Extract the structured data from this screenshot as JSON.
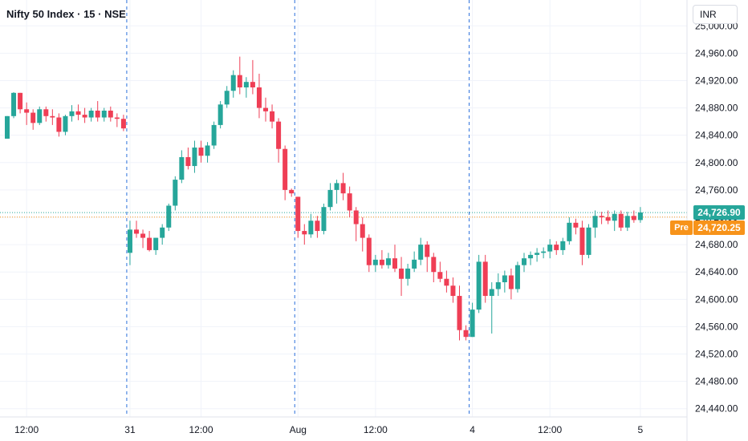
{
  "header": {
    "symbol_line": "Nifty 50 Index · 15 · NSE",
    "currency": "INR"
  },
  "price_labels": {
    "last": "24,726.90",
    "pre_label": "Pre",
    "pre_value": "24,720.25"
  },
  "colors": {
    "up": "#26a69a",
    "down": "#ef3e55",
    "last_line": "#26a69a",
    "pre_line": "#f7931a",
    "grid": "#f0f3fa",
    "separator": "#2a6fdb",
    "axis_text": "#131722"
  },
  "chart_data": {
    "type": "candlestick",
    "title": "Nifty 50 Index · 15 · NSE",
    "ylim": [
      24420,
      25020
    ],
    "y_ticks": [
      25000,
      24960,
      24920,
      24880,
      24840,
      24800,
      24760,
      24720,
      24680,
      24640,
      24600,
      24560,
      24520,
      24480,
      24440
    ],
    "y_tick_labels": [
      "25,000.00",
      "24,960.00",
      "24,920.00",
      "24,880.00",
      "24,840.00",
      "24,800.00",
      "24,760.00",
      "24,720.00",
      "24,680.00",
      "24,640.00",
      "24,600.00",
      "24,560.00",
      "24,520.00",
      "24,480.00",
      "24,440.00"
    ],
    "x_tick_labels": [
      {
        "label": "12:00",
        "bar": 3
      },
      {
        "label": "31",
        "bar": 19
      },
      {
        "label": "12:00",
        "bar": 30
      },
      {
        "label": "Aug",
        "bar": 45
      },
      {
        "label": "12:00",
        "bar": 57
      },
      {
        "label": "4",
        "bar": 72
      },
      {
        "label": "12:00",
        "bar": 84
      },
      {
        "label": "5",
        "bar": 98
      }
    ],
    "session_separators": [
      18.5,
      44.5,
      71.5
    ],
    "last_price": 24726.9,
    "pre_price": 24720.25,
    "candles": [
      [
        24835,
        24868,
        24835,
        24868
      ],
      [
        24868,
        24903,
        24865,
        24902
      ],
      [
        24902,
        24902,
        24872,
        24878
      ],
      [
        24878,
        24888,
        24855,
        24873
      ],
      [
        24873,
        24878,
        24848,
        24858
      ],
      [
        24858,
        24882,
        24855,
        24878
      ],
      [
        24878,
        24882,
        24860,
        24868
      ],
      [
        24868,
        24878,
        24855,
        24866
      ],
      [
        24866,
        24872,
        24838,
        24845
      ],
      [
        24845,
        24870,
        24840,
        24868
      ],
      [
        24868,
        24884,
        24860,
        24875
      ],
      [
        24875,
        24885,
        24862,
        24870
      ],
      [
        24870,
        24880,
        24858,
        24866
      ],
      [
        24866,
        24880,
        24860,
        24876
      ],
      [
        24876,
        24890,
        24860,
        24866
      ],
      [
        24866,
        24880,
        24860,
        24876
      ],
      [
        24876,
        24882,
        24860,
        24866
      ],
      [
        24866,
        24872,
        24852,
        24864
      ],
      [
        24864,
        24870,
        24846,
        24850
      ],
      [
        24668,
        24715,
        24650,
        24702
      ],
      [
        24702,
        24715,
        24690,
        24696
      ],
      [
        24696,
        24702,
        24675,
        24690
      ],
      [
        24690,
        24700,
        24670,
        24672
      ],
      [
        24672,
        24690,
        24665,
        24690
      ],
      [
        24690,
        24710,
        24680,
        24705
      ],
      [
        24705,
        24740,
        24700,
        24737
      ],
      [
        24737,
        24780,
        24730,
        24775
      ],
      [
        24775,
        24818,
        24770,
        24808
      ],
      [
        24808,
        24822,
        24790,
        24795
      ],
      [
        24795,
        24832,
        24785,
        24822
      ],
      [
        24822,
        24832,
        24800,
        24810
      ],
      [
        24810,
        24830,
        24800,
        24825
      ],
      [
        24825,
        24860,
        24820,
        24855
      ],
      [
        24855,
        24890,
        24850,
        24885
      ],
      [
        24885,
        24912,
        24880,
        24905
      ],
      [
        24905,
        24935,
        24895,
        24928
      ],
      [
        24928,
        24955,
        24900,
        24910
      ],
      [
        24910,
        24925,
        24895,
        24918
      ],
      [
        24918,
        24950,
        24900,
        24910
      ],
      [
        24910,
        24930,
        24865,
        24880
      ],
      [
        24880,
        24895,
        24860,
        24875
      ],
      [
        24875,
        24885,
        24850,
        24860
      ],
      [
        24860,
        24865,
        24800,
        24820
      ],
      [
        24820,
        24825,
        24745,
        24760
      ],
      [
        24760,
        24762,
        24750,
        24755
      ],
      [
        24750,
        24750,
        24690,
        24700
      ],
      [
        24700,
        24710,
        24680,
        24695
      ],
      [
        24695,
        24725,
        24690,
        24715
      ],
      [
        24715,
        24722,
        24690,
        24700
      ],
      [
        24700,
        24740,
        24695,
        24735
      ],
      [
        24735,
        24770,
        24730,
        24760
      ],
      [
        24760,
        24775,
        24740,
        24770
      ],
      [
        24770,
        24785,
        24745,
        24755
      ],
      [
        24755,
        24765,
        24720,
        24730
      ],
      [
        24730,
        24735,
        24685,
        24710
      ],
      [
        24710,
        24720,
        24670,
        24690
      ],
      [
        24690,
        24695,
        24640,
        24650
      ],
      [
        24650,
        24665,
        24640,
        24658
      ],
      [
        24658,
        24672,
        24645,
        24650
      ],
      [
        24650,
        24668,
        24645,
        24660
      ],
      [
        24660,
        24680,
        24640,
        24645
      ],
      [
        24645,
        24662,
        24605,
        24630
      ],
      [
        24630,
        24652,
        24620,
        24645
      ],
      [
        24645,
        24670,
        24640,
        24658
      ],
      [
        24658,
        24690,
        24650,
        24680
      ],
      [
        24680,
        24685,
        24640,
        24662
      ],
      [
        24662,
        24668,
        24625,
        24640
      ],
      [
        24640,
        24655,
        24625,
        24630
      ],
      [
        24630,
        24642,
        24610,
        24620
      ],
      [
        24620,
        24632,
        24595,
        24605
      ],
      [
        24605,
        24620,
        24540,
        24555
      ],
      [
        24555,
        24562,
        24540,
        24545
      ],
      [
        24545,
        24595,
        24545,
        24585
      ],
      [
        24585,
        24665,
        24580,
        24655
      ],
      [
        24655,
        24665,
        24595,
        24605
      ],
      [
        24605,
        24625,
        24550,
        24615
      ],
      [
        24615,
        24638,
        24605,
        24625
      ],
      [
        24625,
        24642,
        24610,
        24635
      ],
      [
        24635,
        24645,
        24600,
        24615
      ],
      [
        24615,
        24655,
        24610,
        24650
      ],
      [
        24650,
        24668,
        24640,
        24660
      ],
      [
        24660,
        24670,
        24650,
        24665
      ],
      [
        24665,
        24675,
        24655,
        24668
      ],
      [
        24668,
        24676,
        24660,
        24670
      ],
      [
        24670,
        24688,
        24660,
        24680
      ],
      [
        24680,
        24685,
        24665,
        24672
      ],
      [
        24672,
        24690,
        24665,
        24685
      ],
      [
        24685,
        24720,
        24680,
        24712
      ],
      [
        24712,
        24718,
        24695,
        24705
      ],
      [
        24705,
        24715,
        24650,
        24665
      ],
      [
        24665,
        24710,
        24660,
        24705
      ],
      [
        24705,
        24730,
        24690,
        24722
      ],
      [
        24722,
        24728,
        24710,
        24720
      ],
      [
        24720,
        24730,
        24710,
        24715
      ],
      [
        24715,
        24730,
        24700,
        24725
      ],
      [
        24725,
        24730,
        24700,
        24705
      ],
      [
        24705,
        24728,
        24700,
        24722
      ],
      [
        24722,
        24730,
        24712,
        24716
      ],
      [
        24716,
        24735,
        24712,
        24727
      ]
    ]
  }
}
